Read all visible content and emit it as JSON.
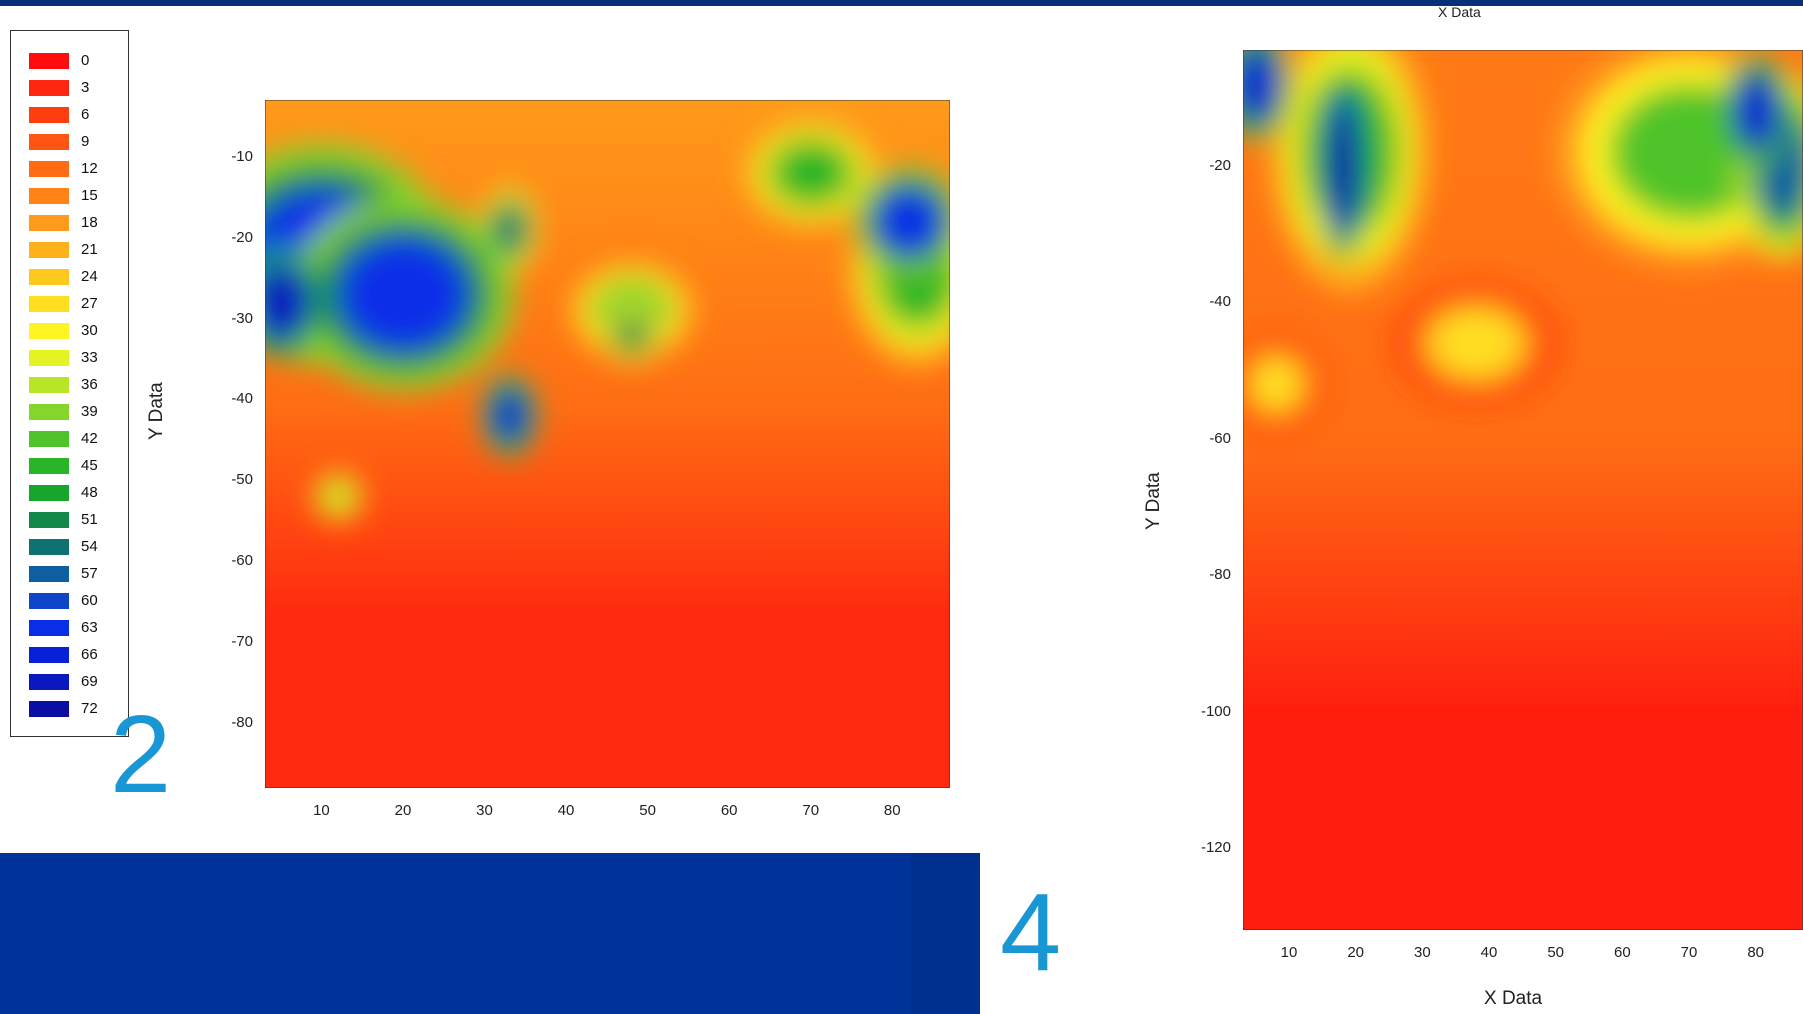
{
  "legend": {
    "items": [
      {
        "label": "0",
        "color": "#ff0d0d"
      },
      {
        "label": "3",
        "color": "#ff260f"
      },
      {
        "label": "6",
        "color": "#ff3e10"
      },
      {
        "label": "9",
        "color": "#ff5512"
      },
      {
        "label": "12",
        "color": "#ff6c14"
      },
      {
        "label": "15",
        "color": "#ff8317"
      },
      {
        "label": "18",
        "color": "#ff9a1a"
      },
      {
        "label": "21",
        "color": "#ffb11c"
      },
      {
        "label": "24",
        "color": "#ffc81e"
      },
      {
        "label": "27",
        "color": "#ffde20"
      },
      {
        "label": "30",
        "color": "#fff522"
      },
      {
        "label": "33",
        "color": "#e4f323"
      },
      {
        "label": "36",
        "color": "#b9e528"
      },
      {
        "label": "39",
        "color": "#86d52a"
      },
      {
        "label": "42",
        "color": "#4fc42a"
      },
      {
        "label": "45",
        "color": "#28b628"
      },
      {
        "label": "48",
        "color": "#16a62c"
      },
      {
        "label": "51",
        "color": "#12894a"
      },
      {
        "label": "54",
        "color": "#0f7272"
      },
      {
        "label": "57",
        "color": "#0f5ea0"
      },
      {
        "label": "60",
        "color": "#0f45c8"
      },
      {
        "label": "63",
        "color": "#0a2ee8"
      },
      {
        "label": "66",
        "color": "#0820d6"
      },
      {
        "label": "69",
        "color": "#0a18c0"
      },
      {
        "label": "72",
        "color": "#0a0ea2"
      }
    ]
  },
  "slide_numbers": [
    "2",
    "4"
  ],
  "chart_data": [
    {
      "type": "heatmap",
      "ylabel": "Y Data",
      "xlabel": "",
      "x_ticks": [
        10,
        20,
        30,
        40,
        50,
        60,
        70,
        80
      ],
      "y_ticks": [
        -10,
        -20,
        -30,
        -40,
        -50,
        -60,
        -70,
        -80
      ],
      "xlim": [
        3,
        87
      ],
      "ylim": [
        -88,
        -3
      ],
      "hotspots": [
        {
          "x": 10,
          "y": -22,
          "value": 62,
          "rx": 9,
          "ry": 8
        },
        {
          "x": 5,
          "y": -28,
          "value": 70,
          "rx": 3,
          "ry": 4
        },
        {
          "x": 20,
          "y": -27,
          "value": 62,
          "rx": 8,
          "ry": 7
        },
        {
          "x": 33,
          "y": -19,
          "value": 55,
          "rx": 2,
          "ry": 3
        },
        {
          "x": 33,
          "y": -42,
          "value": 66,
          "rx": 2,
          "ry": 3
        },
        {
          "x": 48,
          "y": -29,
          "value": 39,
          "rx": 5,
          "ry": 4
        },
        {
          "x": 48,
          "y": -32,
          "value": 51,
          "rx": 2,
          "ry": 2
        },
        {
          "x": 70,
          "y": -12,
          "value": 45,
          "rx": 5,
          "ry": 4
        },
        {
          "x": 82,
          "y": -18,
          "value": 63,
          "rx": 4,
          "ry": 4
        },
        {
          "x": 83,
          "y": -24,
          "value": 45,
          "rx": 5,
          "ry": 7
        },
        {
          "x": 12,
          "y": -52,
          "value": 36,
          "rx": 2,
          "ry": 2
        }
      ]
    },
    {
      "type": "heatmap",
      "ylabel": "Y Data",
      "xlabel": "X Data",
      "top_label": "X Data",
      "x_ticks": [
        10,
        20,
        30,
        40,
        50,
        60,
        70,
        80
      ],
      "y_ticks": [
        -20,
        -40,
        -60,
        -80,
        -100,
        -120
      ],
      "xlim": [
        3,
        87
      ],
      "ylim": [
        -132,
        -3
      ],
      "hotspots": [
        {
          "x": 5,
          "y": -8,
          "value": 66,
          "rx": 3,
          "ry": 5
        },
        {
          "x": 18,
          "y": -20,
          "value": 72,
          "rx": 2,
          "ry": 8
        },
        {
          "x": 19,
          "y": -18,
          "value": 45,
          "rx": 7,
          "ry": 12
        },
        {
          "x": 80,
          "y": -12,
          "value": 66,
          "rx": 3,
          "ry": 5
        },
        {
          "x": 84,
          "y": -20,
          "value": 57,
          "rx": 4,
          "ry": 8
        },
        {
          "x": 70,
          "y": -18,
          "value": 42,
          "rx": 12,
          "ry": 10
        },
        {
          "x": 38,
          "y": -46,
          "value": 27,
          "rx": 7,
          "ry": 5
        },
        {
          "x": 8,
          "y": -52,
          "value": 27,
          "rx": 4,
          "ry": 4
        }
      ]
    }
  ]
}
